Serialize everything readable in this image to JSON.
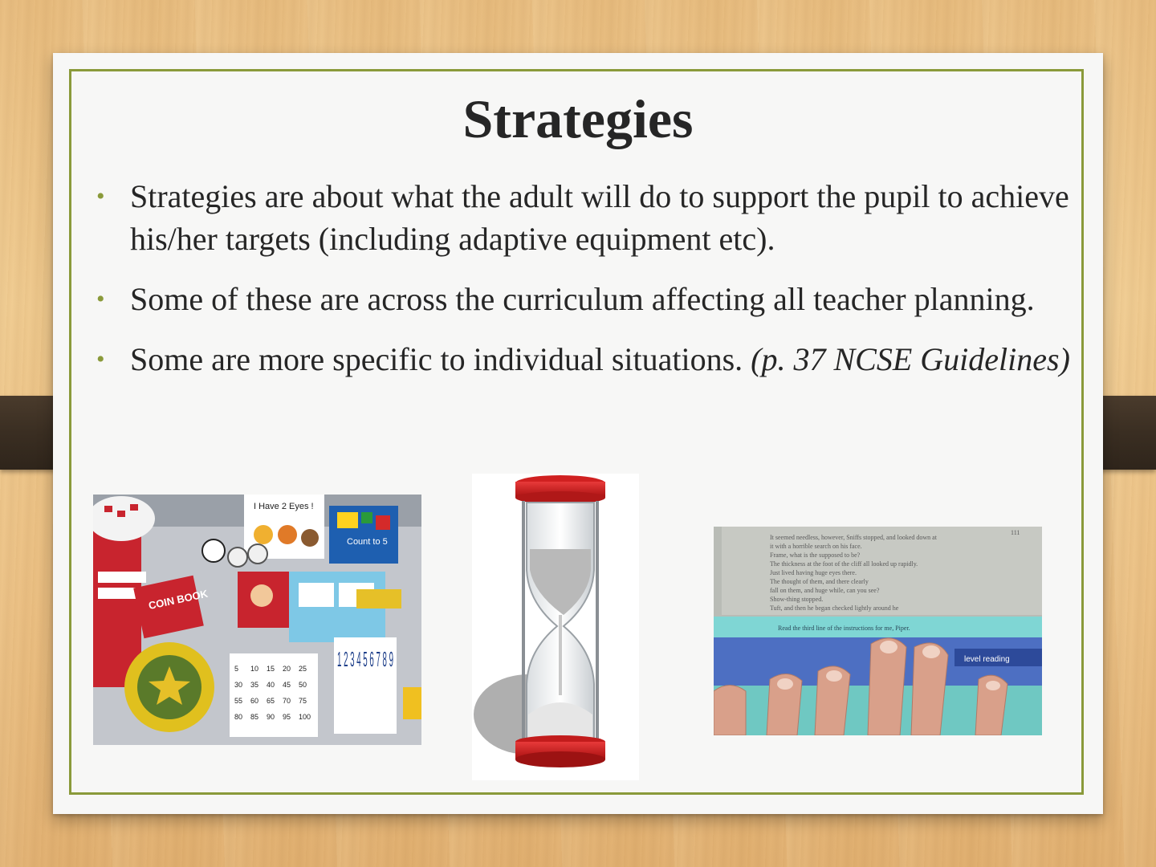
{
  "slide": {
    "title": "Strategies",
    "bullets": [
      {
        "text": "Strategies are about what the adult will do  to support the pupil to achieve his/her targets (including adaptive equipment etc).",
        "citation": ""
      },
      {
        "text": "Some of these are across the curriculum affecting all teacher planning.",
        "citation": ""
      },
      {
        "text": "Some are more specific to individual situations. ",
        "citation": "(p. 37 NCSE Guidelines)"
      }
    ]
  },
  "images": {
    "resources": {
      "book_label": "COIN BOOK",
      "card_label": "Count to 5",
      "poster_label": "I Have 2 Eyes !",
      "grid_numbers": [
        "5",
        "10",
        "15",
        "20",
        "25",
        "30",
        "35",
        "40",
        "45",
        "50",
        "55",
        "60",
        "65",
        "70",
        "75",
        "80",
        "85",
        "90",
        "95",
        "100"
      ],
      "big_numbers": "1 2 3 4 5 6 7 8 9"
    },
    "reading": {
      "book_lines": [
        "It seemed needless, however, Sniffs stopped, and looked down at",
        "it with a horrible search on his face.",
        "Frame, what is the supposed to be?",
        "The thickness at the foot of the cliff all looked up rapidly.",
        "Just lived having huge eyes there.",
        "The thought of them, and there clearly",
        "fall on them, and huge while, can you see?",
        "Show-thing stopped.",
        "Tuft, and then he began checked lightly around he"
      ],
      "page_number": "111",
      "strip_text": "Read the third line of the instructions for me, Piper.",
      "tool_label": "level reading"
    },
    "colors": {
      "frame_border": "#8a9a3a",
      "bullet": "#8a9a3a",
      "text": "#262626",
      "strap": "#3a2e22"
    }
  }
}
